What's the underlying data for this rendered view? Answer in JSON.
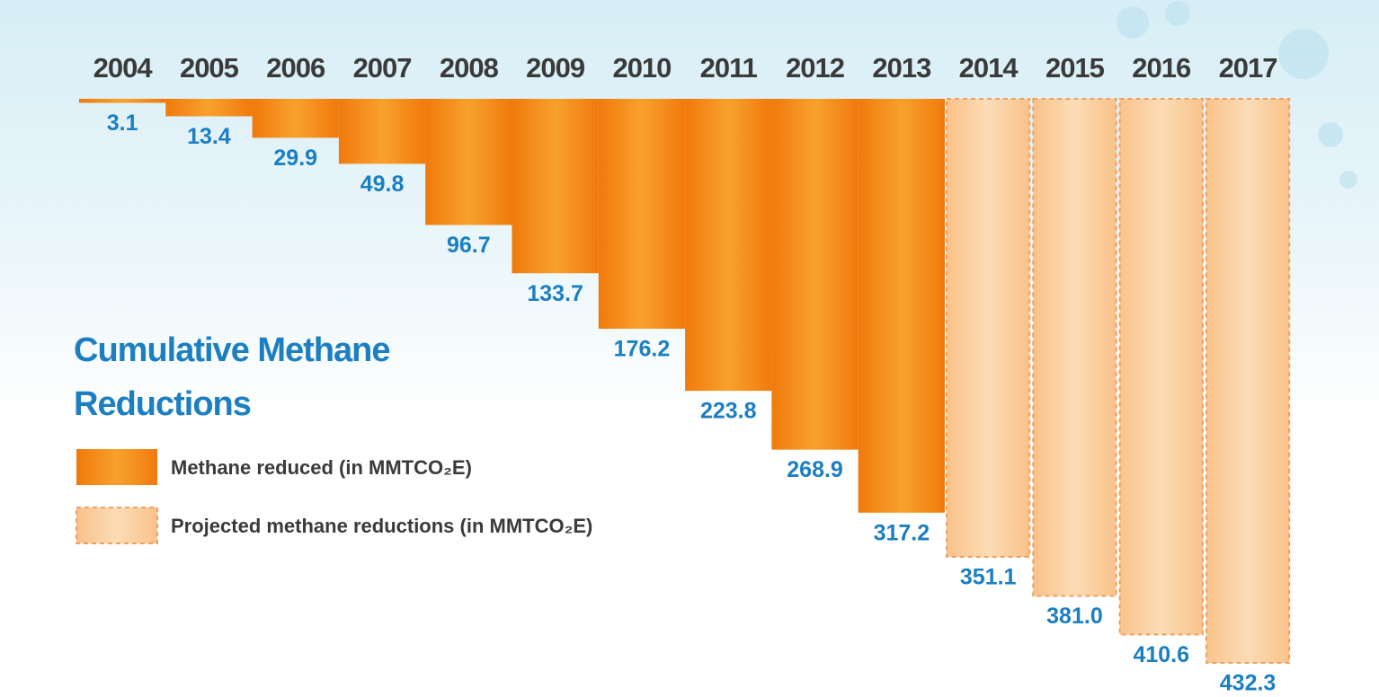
{
  "chart_data": {
    "type": "bar",
    "title": "Cumulative Methane Reductions",
    "categories": [
      "2004",
      "2005",
      "2006",
      "2007",
      "2008",
      "2009",
      "2010",
      "2011",
      "2012",
      "2013",
      "2014",
      "2015",
      "2016",
      "2017"
    ],
    "series": [
      {
        "name": "Methane reduced (in MMTCO₂E)",
        "color": "#f7931e",
        "dashed": false,
        "values": [
          3.1,
          13.4,
          29.9,
          49.8,
          96.7,
          133.7,
          176.2,
          223.8,
          268.9,
          317.2,
          null,
          null,
          null,
          null
        ],
        "value_labels": [
          "3.1",
          "13.4",
          "29.9",
          "49.8",
          "96.7",
          "133.7",
          "176.2",
          "223.8",
          "268.9",
          "317.2",
          null,
          null,
          null,
          null
        ]
      },
      {
        "name": "Projected methane reductions (in MMTCO₂E)",
        "color": "#fbd2a4",
        "dashed": true,
        "values": [
          null,
          null,
          null,
          null,
          null,
          null,
          null,
          null,
          null,
          null,
          351.1,
          381.0,
          410.6,
          432.3
        ],
        "value_labels": [
          null,
          null,
          null,
          null,
          null,
          null,
          null,
          null,
          null,
          null,
          "351.1",
          "381.0",
          "410.6",
          "432.3"
        ]
      }
    ]
  }
}
